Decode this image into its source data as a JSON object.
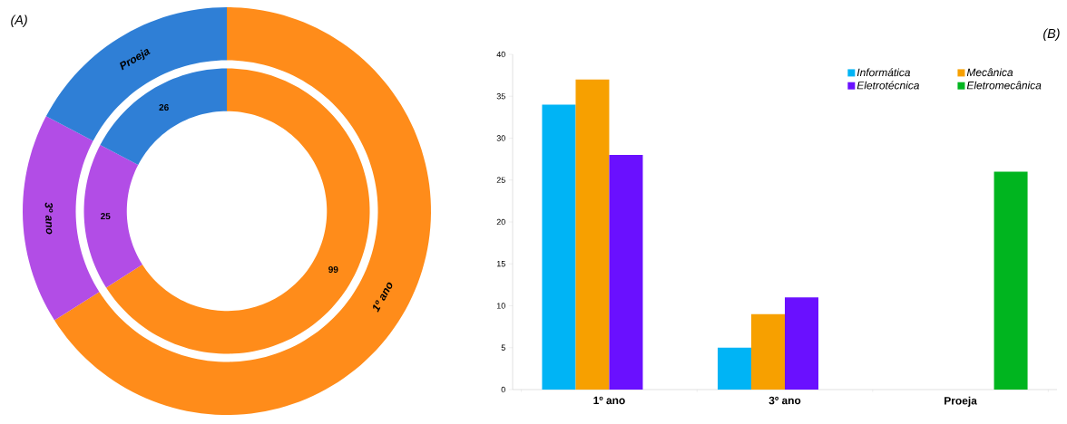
{
  "chart_data": [
    {
      "type": "donut",
      "title": "(A)",
      "categories": [
        "1º ano",
        "3º ano",
        "Proeja"
      ],
      "colors": [
        "#ff8c1a",
        "#b24de6",
        "#2f7fd6"
      ],
      "series": [
        {
          "values": [
            66,
            16.7,
            17.3
          ]
        },
        {
          "values": [
            99,
            25,
            26
          ],
          "value_labels": [
            "99",
            "25",
            "26"
          ]
        }
      ]
    },
    {
      "type": "bar",
      "title": "(B)",
      "categories": [
        "1º ano",
        "3º ano",
        "Proeja"
      ],
      "series": [
        {
          "name": "Informática",
          "color": "#00b4f5",
          "values": [
            34,
            5,
            null
          ]
        },
        {
          "name": "Mecânica",
          "color": "#f7a000",
          "values": [
            37,
            9,
            null
          ]
        },
        {
          "name": "Eletrotécnica",
          "color": "#6a10ff",
          "values": [
            28,
            11,
            null
          ]
        },
        {
          "name": "Eletromecânica",
          "color": "#00b51f",
          "values": [
            null,
            null,
            26
          ]
        }
      ],
      "ylim": [
        0,
        40
      ],
      "yticks": [
        0,
        5,
        10,
        15,
        20,
        25,
        30,
        35,
        40
      ],
      "legend": "top right",
      "grid": false
    }
  ]
}
